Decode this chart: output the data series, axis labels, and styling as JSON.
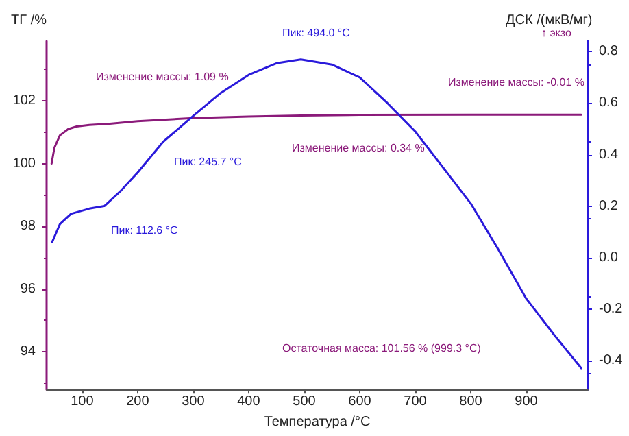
{
  "chart_data": {
    "type": "line",
    "xlabel": "Температура /°C",
    "ylabel": "ТГ /%",
    "y2label": "ДСК /(мкВ/мг)",
    "xlim": [
      36,
      1011
    ],
    "xticks": [
      100,
      200,
      300,
      400,
      500,
      600,
      700,
      800,
      900
    ],
    "ylim": [
      92.8,
      103.9
    ],
    "yticks": [
      94,
      96,
      98,
      100,
      102
    ],
    "y2lim": [
      -0.513,
      0.841
    ],
    "y2ticks": [
      -0.4,
      -0.2,
      {
        "value": 0,
        "label": "0.0"
      },
      0.2,
      0.4,
      0.6,
      0.8
    ],
    "grid": false,
    "marker": "none",
    "line_style": "solid",
    "annotations": [
      "Изменение массы: 1.09 %",
      "Изменение массы: 0.34 %",
      "Изменение массы: -0.01 %",
      "Пик: 245.7 °C",
      "Пик: 494.0 °C",
      "Пик: 112.6 °C",
      "Остаточная масса: 101.56 % (999.3 °C)",
      "↑ экзо"
    ],
    "series": [
      {
        "color": "#8b1a7a",
        "x": [
          45,
          50,
          60,
          75,
          90,
          113,
          150,
          200,
          300,
          400,
          494,
          600,
          800,
          999
        ],
        "values": [
          100.0,
          100.5,
          100.9,
          101.1,
          101.18,
          101.23,
          101.27,
          101.35,
          101.45,
          101.5,
          101.53,
          101.55,
          101.56,
          101.56
        ]
      },
      {
        "color": "#2a1adb",
        "axis": "y2",
        "x": [
          46,
          60,
          80,
          113,
          140,
          170,
          200,
          246,
          300,
          350,
          400,
          450,
          494,
          550,
          600,
          650,
          700,
          750,
          800,
          850,
          900,
          950,
          999
        ],
        "values": [
          0.06,
          0.13,
          0.17,
          0.19,
          0.2,
          0.26,
          0.33,
          0.45,
          0.55,
          0.64,
          0.71,
          0.755,
          0.77,
          0.75,
          0.7,
          0.6,
          0.49,
          0.35,
          0.21,
          0.03,
          -0.16,
          -0.3,
          -0.43
        ]
      }
    ]
  }
}
